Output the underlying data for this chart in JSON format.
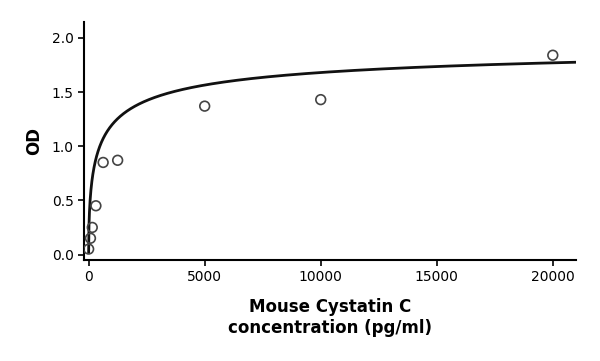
{
  "scatter_x": [
    0,
    78,
    156,
    313,
    625,
    1250,
    5000,
    10000,
    20000
  ],
  "scatter_y": [
    0.05,
    0.15,
    0.25,
    0.45,
    0.85,
    0.87,
    1.37,
    1.43,
    1.84
  ],
  "xlim": [
    -200,
    21000
  ],
  "ylim": [
    -0.05,
    2.15
  ],
  "xticks": [
    0,
    5000,
    10000,
    15000,
    20000
  ],
  "yticks": [
    0,
    0.5,
    1.0,
    1.5,
    2.0
  ],
  "xlabel_line1": "Mouse Cystatin C",
  "xlabel_line2": "concentration (pg/ml)",
  "ylabel": "OD",
  "xlabel_fontsize": 12,
  "ylabel_fontsize": 12,
  "tick_fontsize": 10,
  "marker_color": "none",
  "marker_edgecolor": "#444444",
  "marker_size": 7,
  "line_color": "#111111",
  "line_width": 2.0,
  "background_color": "#ffffff",
  "fig_width": 6.0,
  "fig_height": 3.61,
  "curve_params": [
    0.02,
    0.55,
    800,
    2.05
  ]
}
